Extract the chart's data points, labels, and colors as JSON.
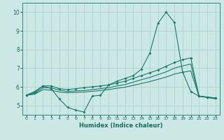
{
  "xlabel": "Humidex (Indice chaleur)",
  "xlim": [
    -0.5,
    23.5
  ],
  "ylim": [
    4.5,
    10.5
  ],
  "yticks": [
    5,
    6,
    7,
    8,
    9,
    10
  ],
  "xticks": [
    0,
    1,
    2,
    3,
    4,
    5,
    6,
    7,
    8,
    9,
    10,
    11,
    12,
    13,
    14,
    15,
    16,
    17,
    18,
    19,
    20,
    21,
    22,
    23
  ],
  "bg_color": "#cce8e4",
  "grid_color": "#aacfcc",
  "line_color": "#1a7a6e",
  "line1_y": [
    5.55,
    5.75,
    6.05,
    5.9,
    5.35,
    4.9,
    4.75,
    4.65,
    5.5,
    5.55,
    6.1,
    6.3,
    6.45,
    6.6,
    6.95,
    7.8,
    9.4,
    10.0,
    9.45,
    6.8,
    5.75,
    5.5,
    5.45,
    5.4
  ],
  "line2_y": [
    5.55,
    5.7,
    6.05,
    6.05,
    5.9,
    5.85,
    5.9,
    5.95,
    6.0,
    6.05,
    6.1,
    6.2,
    6.3,
    6.45,
    6.6,
    6.75,
    6.9,
    7.1,
    7.3,
    7.45,
    7.55,
    5.5,
    5.45,
    5.4
  ],
  "line3_y": [
    5.55,
    5.65,
    5.95,
    5.95,
    5.82,
    5.75,
    5.78,
    5.8,
    5.85,
    5.9,
    5.95,
    6.05,
    6.12,
    6.25,
    6.38,
    6.5,
    6.65,
    6.8,
    7.0,
    7.12,
    7.22,
    5.5,
    5.44,
    5.38
  ],
  "line4_y": [
    5.55,
    5.6,
    5.85,
    5.82,
    5.72,
    5.68,
    5.7,
    5.72,
    5.76,
    5.8,
    5.85,
    5.92,
    5.98,
    6.08,
    6.18,
    6.28,
    6.4,
    6.52,
    6.68,
    6.78,
    6.85,
    5.5,
    5.42,
    5.36
  ]
}
